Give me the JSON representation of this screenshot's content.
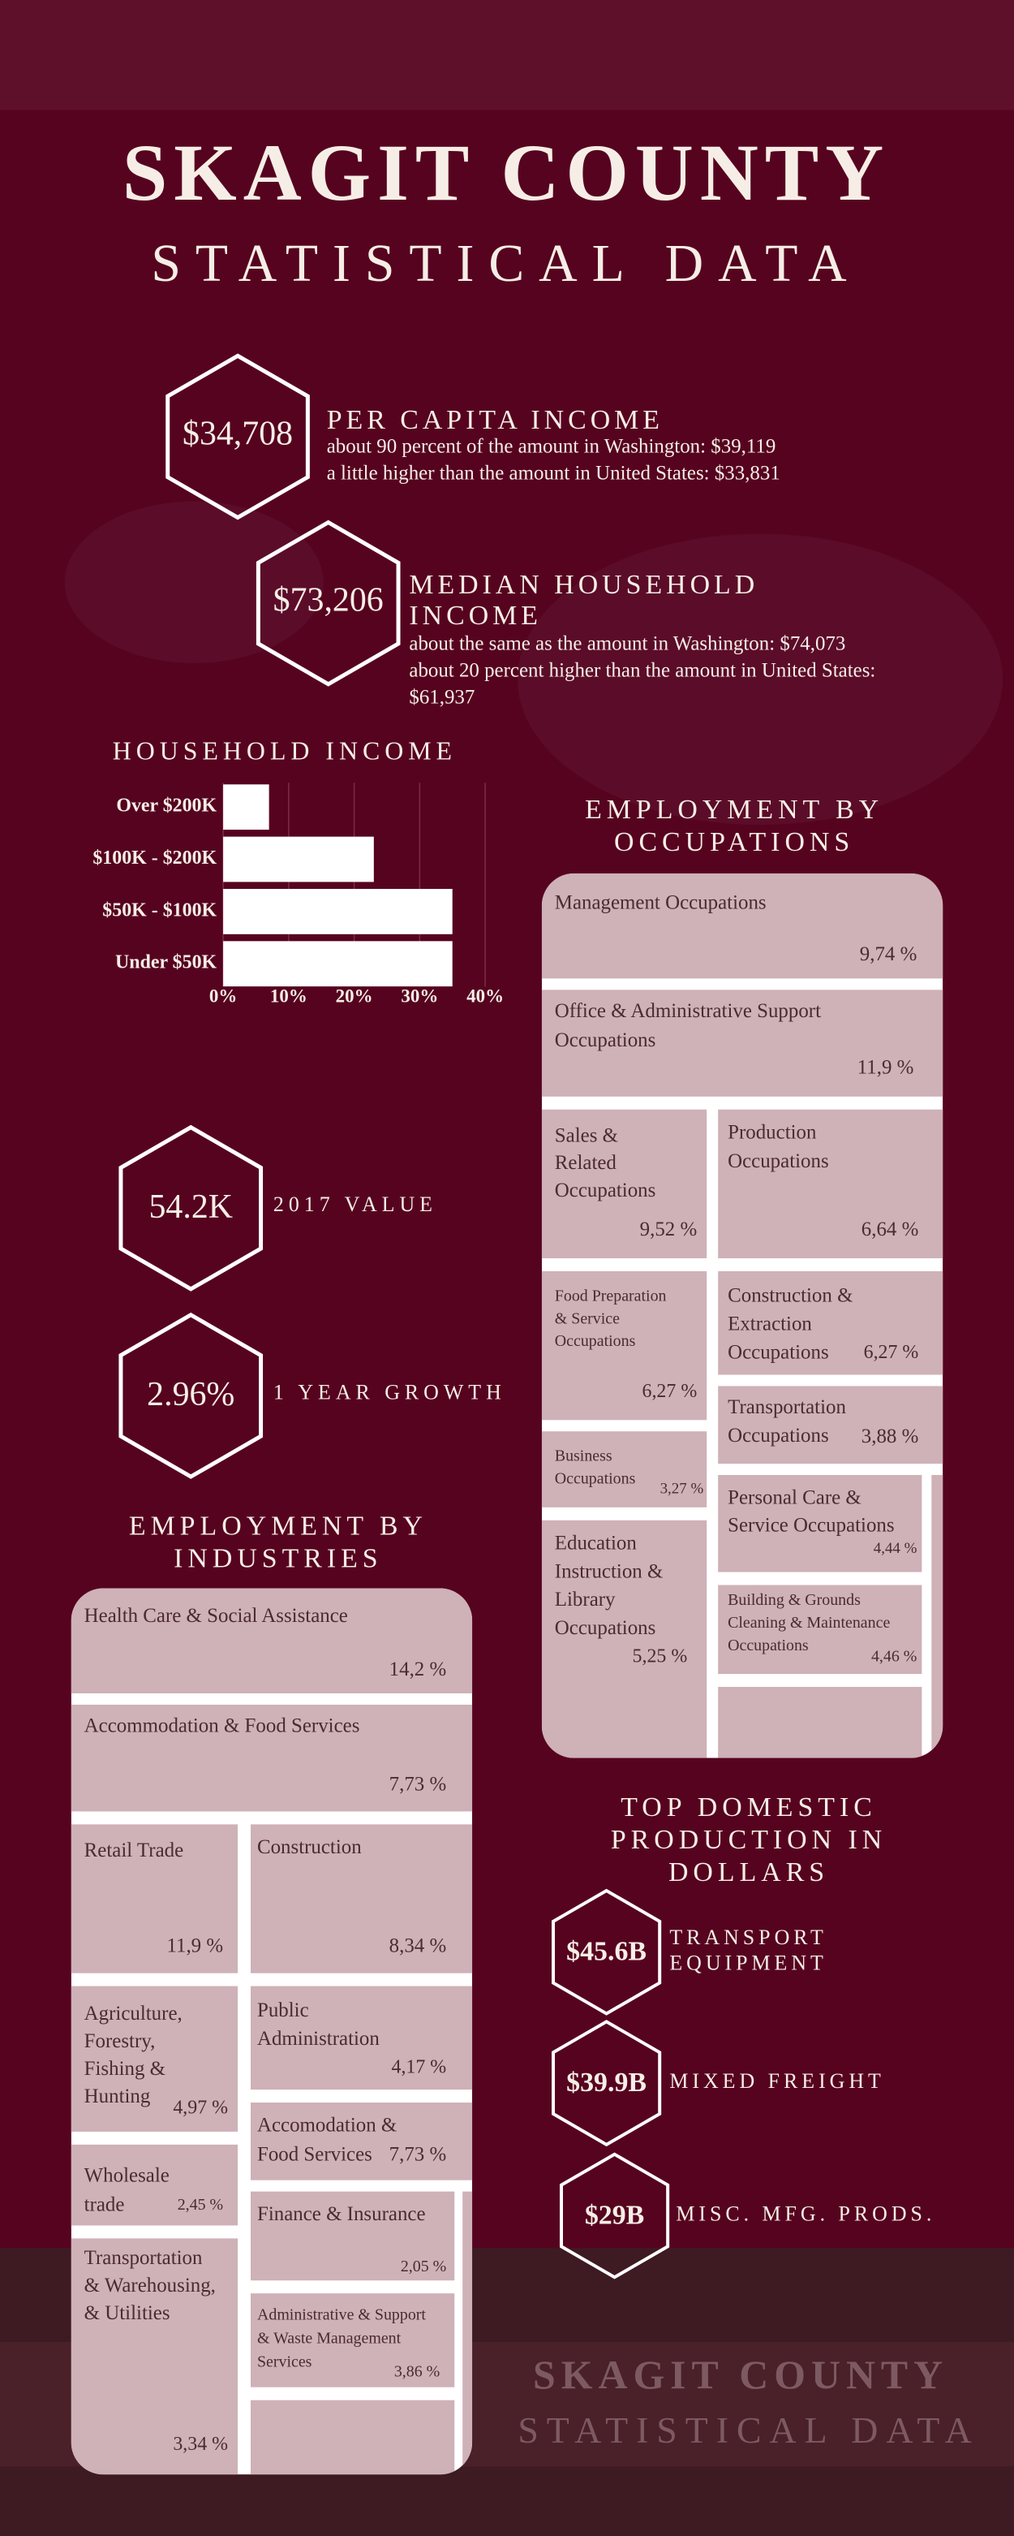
{
  "header": {
    "title": "SKAGIT COUNTY",
    "subtitle": "STATISTICAL DATA"
  },
  "income_stats": [
    {
      "value": "$34,708",
      "label": [
        "PER CAPITA INCOME"
      ],
      "notes": [
        "about 90 percent of the amount in Washington: $39,119",
        "a little higher than the amount in United States: $33,831"
      ]
    },
    {
      "value": "$73,206",
      "label": [
        "MEDIAN HOUSEHOLD",
        "INCOME"
      ],
      "notes": [
        "about the same as the amount in Washington: $74,073",
        "about 20 percent higher than the amount in United States:",
        "$61,937"
      ]
    }
  ],
  "chart_data": {
    "type": "bar",
    "orientation": "horizontal",
    "title": "HOUSEHOLD INCOME",
    "categories": [
      "Over $200K",
      "$100K - $200K",
      "$50K - $100K",
      "Under $50K"
    ],
    "values": [
      7,
      23,
      35,
      35
    ],
    "color": "#ffffff",
    "xlim": [
      0,
      40
    ],
    "xticks": [
      {
        "value": 0,
        "label": "0%"
      },
      {
        "value": 10,
        "label": "10%"
      },
      {
        "value": 20,
        "label": "20%"
      },
      {
        "value": 30,
        "label": "30%"
      },
      {
        "value": 40,
        "label": "40%"
      }
    ],
    "grid": true
  },
  "trend_stats": [
    {
      "value": "54.2K",
      "label": "2017 VALUE"
    },
    {
      "value": "2.96%",
      "label": "1 YEAR GROWTH"
    }
  ],
  "occupations": {
    "title": [
      "EMPLOYMENT BY",
      "OCCUPATIONS"
    ],
    "items": [
      {
        "label": [
          "Management Occupations"
        ],
        "share": "9,74 %"
      },
      {
        "label": [
          "Office & Administrative Support",
          "Occupations"
        ],
        "share": "11,9 %"
      },
      {
        "label": [
          "Sales &",
          "Related",
          "Occupations"
        ],
        "share": "9,52 %"
      },
      {
        "label": [
          "Production",
          "Occupations"
        ],
        "share": "6,64 %"
      },
      {
        "label": [
          "Food Preparation",
          "& Service",
          "Occupations"
        ],
        "share": "6,27 %"
      },
      {
        "label": [
          "Construction &",
          "Extraction",
          "Occupations"
        ],
        "share": "6,27 %"
      },
      {
        "label": [
          "Transportation",
          "Occupations"
        ],
        "share": "3,88 %"
      },
      {
        "label": [
          "Business",
          "Occupations"
        ],
        "share": "3,27 %"
      },
      {
        "label": [
          "Personal Care &",
          "Service Occupations"
        ],
        "share": "4,44 %"
      },
      {
        "label": [
          "Education",
          "Instruction &",
          "Library",
          "Occupations"
        ],
        "share": "5,25 %"
      },
      {
        "label": [
          "Building & Grounds",
          "Cleaning & Maintenance",
          "Occupations"
        ],
        "share": "4,46 %"
      }
    ]
  },
  "industries": {
    "title": [
      "EMPLOYMENT BY",
      "INDUSTRIES"
    ],
    "items": [
      {
        "label": [
          "Health Care & Social Assistance"
        ],
        "share": "14,2 %"
      },
      {
        "label": [
          "Accommodation & Food Services"
        ],
        "share": "7,73 %"
      },
      {
        "label": [
          "Retail Trade"
        ],
        "share": "11,9 %"
      },
      {
        "label": [
          "Construction"
        ],
        "share": "8,34 %"
      },
      {
        "label": [
          "Agriculture,",
          "Forestry,",
          "Fishing &",
          "Hunting"
        ],
        "share": "4,97 %"
      },
      {
        "label": [
          "Public",
          "Administration"
        ],
        "share": "4,17 %"
      },
      {
        "label": [
          "Accomodation &",
          "Food Services"
        ],
        "share": "7,73 %"
      },
      {
        "label": [
          "Wholesale",
          "trade"
        ],
        "share": "2,45 %"
      },
      {
        "label": [
          "Finance & Insurance"
        ],
        "share": "2,05 %"
      },
      {
        "label": [
          "Transportation",
          "& Warehousing,",
          "& Utilities"
        ],
        "share": "3,34 %"
      },
      {
        "label": [
          "Administrative & Support",
          "& Waste Management",
          "Services"
        ],
        "share": "3,86 %"
      }
    ]
  },
  "production": {
    "title": [
      "TOP DOMESTIC",
      "PRODUCTION IN",
      "DOLLARS"
    ],
    "items": [
      {
        "value": "$45.6B",
        "label": [
          "TRANSPORT",
          "EQUIPMENT"
        ]
      },
      {
        "value": "$39.9B",
        "label": [
          "MIXED FREIGHT"
        ]
      },
      {
        "value": "$29B",
        "label": [
          "MISC. MFG. PRODS."
        ]
      }
    ]
  },
  "footer": {
    "title": "SKAGIT COUNTY",
    "subtitle": "STATISTICAL DATA"
  }
}
